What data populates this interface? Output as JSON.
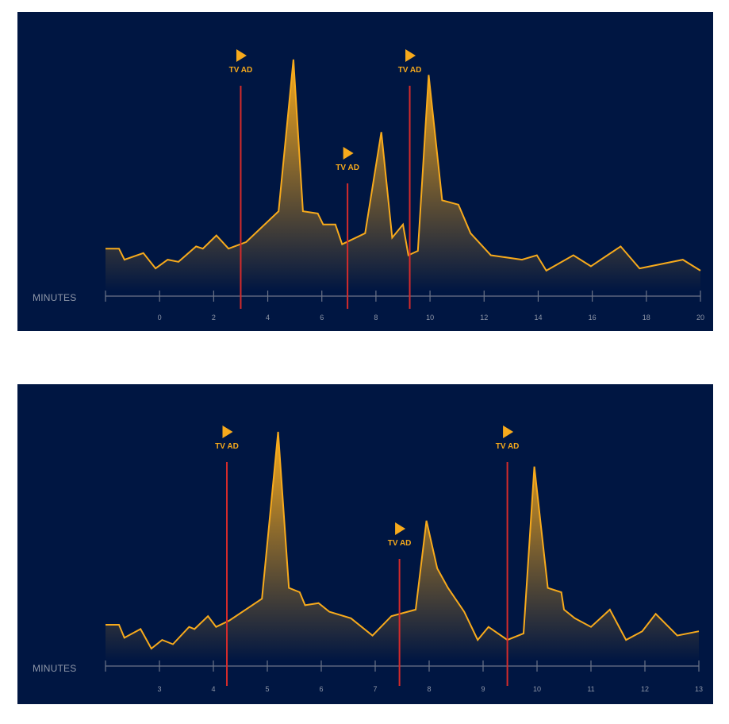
{
  "colors": {
    "background": "#001642",
    "line": "#f7aa1c",
    "ad_marker": "#d52b2b",
    "axis": "#6c7488",
    "tick_label": "#8f97a8"
  },
  "icons": {
    "ad_marker_icon": "play-triangle-icon"
  },
  "chart_data": [
    {
      "type": "area",
      "xlabel": "MINUTES",
      "ylabel": "",
      "title": "",
      "grid": false,
      "xlim": [
        -2,
        20
      ],
      "ylim": [
        0,
        100
      ],
      "x_ticks": [
        -2,
        0,
        2,
        4,
        6,
        8,
        10,
        12,
        14,
        16,
        18,
        20
      ],
      "x_tick_labels": [
        "",
        "0",
        "2",
        "4",
        "6",
        "8",
        "10",
        "12",
        "14",
        "16",
        "18",
        "20"
      ],
      "annotations": [
        {
          "x": 3.0,
          "label": "TV AD"
        },
        {
          "x": 6.95,
          "label": "TV AD"
        },
        {
          "x": 9.25,
          "label": "TV AD"
        }
      ],
      "series": [
        {
          "x": [
            -2.0,
            -1.5,
            -1.3,
            -0.6,
            -0.15,
            0.3,
            0.7,
            1.35,
            1.6,
            2.1,
            2.55,
            3.2,
            4.4,
            4.95,
            5.3,
            5.85,
            6.05,
            6.5,
            6.75,
            7.6,
            8.2,
            8.6,
            9.0,
            9.2,
            9.55,
            9.95,
            10.45,
            11.05,
            11.5,
            12.25,
            13.4,
            13.95,
            14.3,
            15.3,
            15.95,
            17.05,
            17.75,
            19.35,
            20.0
          ],
          "y": [
            14,
            14,
            9,
            12,
            5,
            9,
            8,
            15,
            14,
            20,
            14,
            17,
            31,
            100,
            31,
            30,
            25,
            25,
            16,
            21,
            67,
            19,
            25,
            11,
            13,
            93,
            36,
            34,
            21,
            11,
            9,
            11,
            4,
            11,
            6,
            15,
            5,
            9,
            4
          ]
        }
      ]
    },
    {
      "type": "area",
      "xlabel": "MINUTES",
      "ylabel": "",
      "title": "",
      "grid": false,
      "xlim": [
        2,
        13
      ],
      "ylim": [
        0,
        100
      ],
      "x_ticks": [
        2,
        3,
        4,
        5,
        6,
        7,
        8,
        9,
        10,
        11,
        12,
        13
      ],
      "x_tick_labels": [
        "",
        "3",
        "4",
        "5",
        "6",
        "7",
        "8",
        "9",
        "10",
        "11",
        "12",
        "13"
      ],
      "annotations": [
        {
          "x": 4.25,
          "label": "TV AD"
        },
        {
          "x": 7.45,
          "label": "TV AD"
        },
        {
          "x": 9.45,
          "label": "TV AD"
        }
      ],
      "series": [
        {
          "x": [
            2.0,
            2.25,
            2.35,
            2.65,
            2.85,
            3.05,
            3.25,
            3.55,
            3.65,
            3.9,
            4.05,
            4.3,
            4.9,
            5.2,
            5.4,
            5.6,
            5.7,
            5.95,
            6.15,
            6.55,
            6.95,
            7.3,
            7.75,
            7.95,
            8.15,
            8.35,
            8.65,
            8.9,
            9.1,
            9.45,
            9.75,
            9.95,
            10.2,
            10.45,
            10.5,
            10.7,
            11.0,
            11.35,
            11.65,
            11.95,
            12.2,
            12.6,
            13.0
          ],
          "y": [
            11,
            11,
            5,
            9,
            0,
            4,
            2,
            10,
            9,
            15,
            10,
            13,
            23,
            100,
            28,
            26,
            20,
            21,
            17,
            14,
            6,
            15,
            18,
            59,
            37,
            28,
            17,
            4,
            10,
            4,
            7,
            84,
            28,
            26,
            18,
            14,
            10,
            18,
            4,
            8,
            16,
            6,
            8
          ]
        }
      ]
    }
  ]
}
